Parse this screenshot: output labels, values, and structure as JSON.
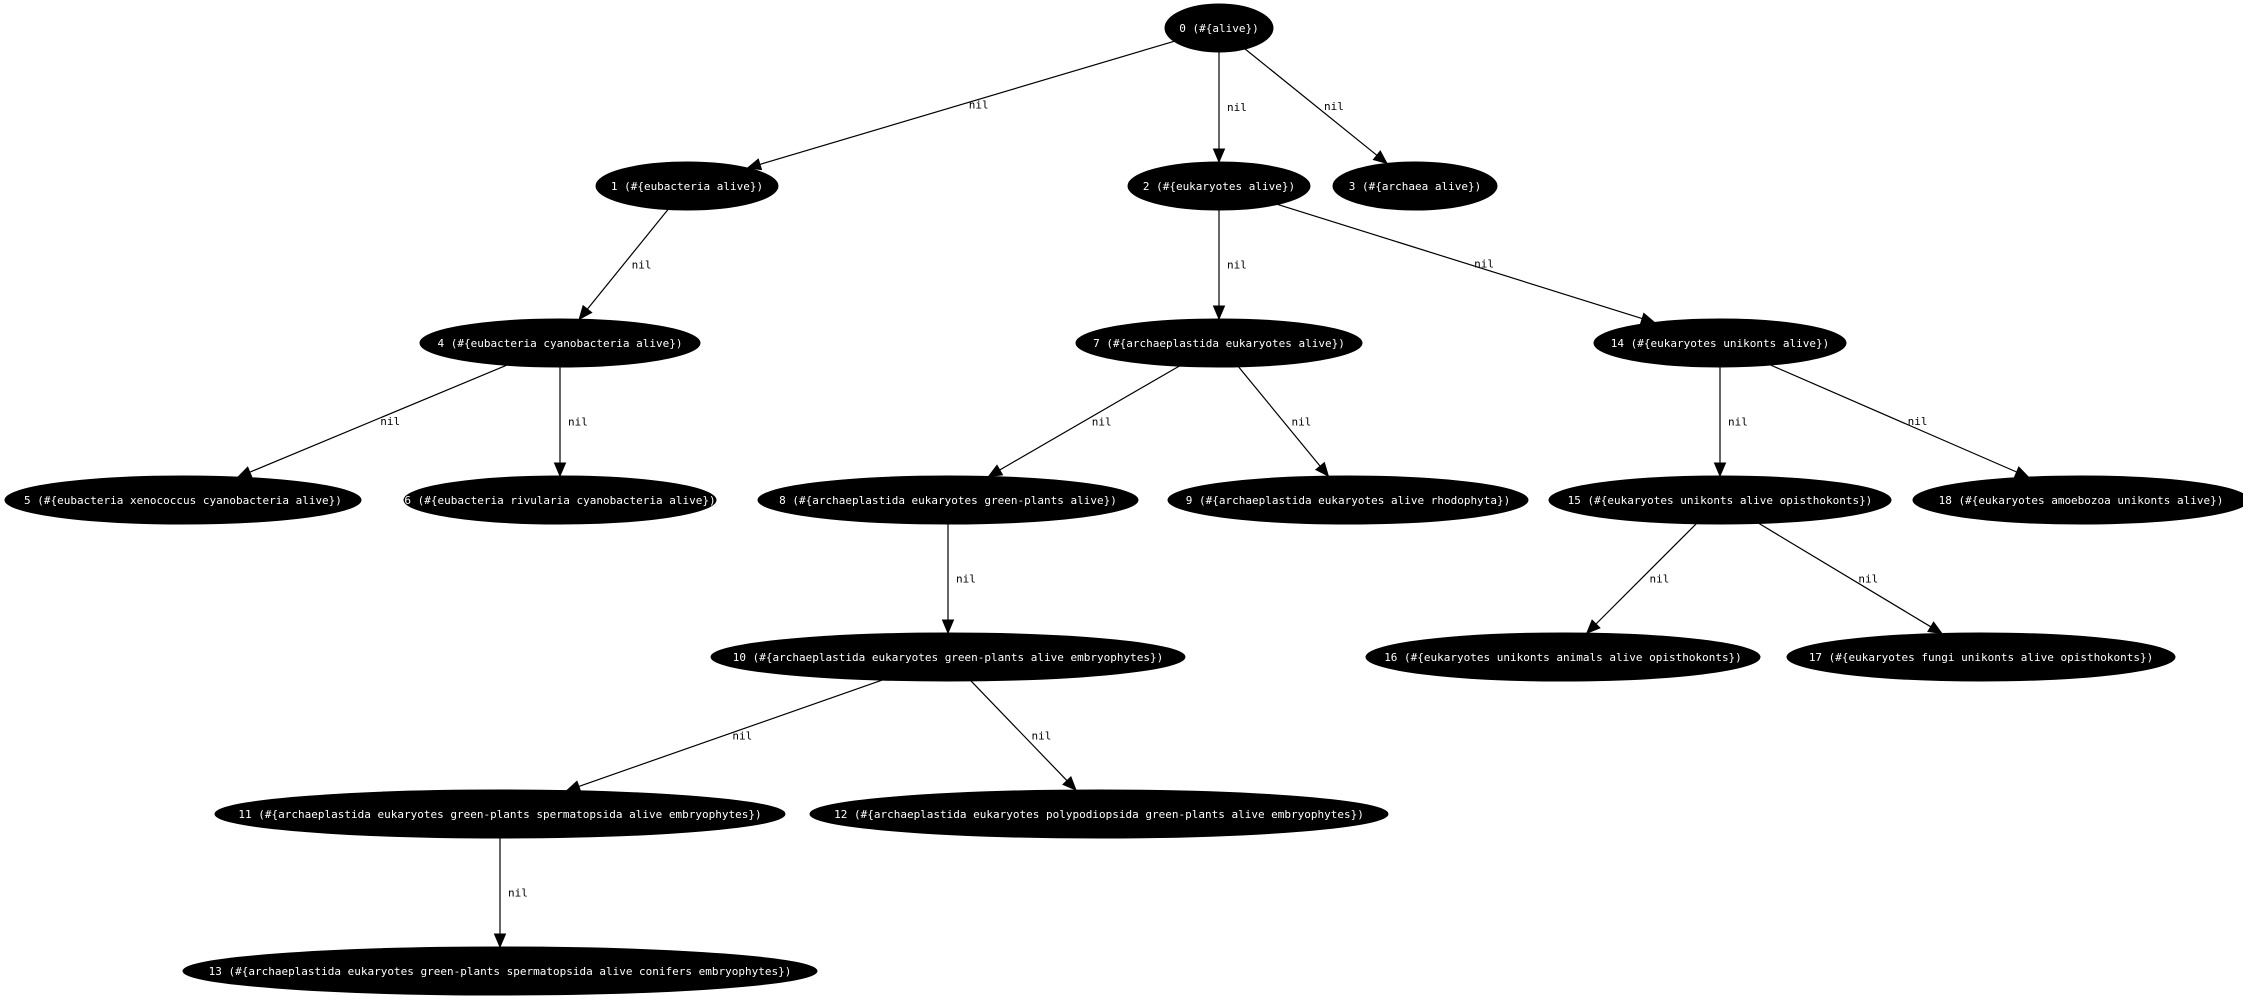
{
  "graph": {
    "nodes": [
      {
        "id": 0,
        "label": "0 (#{alive})"
      },
      {
        "id": 1,
        "label": "1 (#{eubacteria alive})"
      },
      {
        "id": 2,
        "label": "2 (#{eukaryotes alive})"
      },
      {
        "id": 3,
        "label": "3 (#{archaea alive})"
      },
      {
        "id": 4,
        "label": "4 (#{eubacteria cyanobacteria alive})"
      },
      {
        "id": 5,
        "label": "5 (#{eubacteria xenococcus cyanobacteria alive})"
      },
      {
        "id": 6,
        "label": "6 (#{eubacteria rivularia cyanobacteria alive})"
      },
      {
        "id": 7,
        "label": "7 (#{archaeplastida eukaryotes alive})"
      },
      {
        "id": 8,
        "label": "8 (#{archaeplastida eukaryotes green-plants alive})"
      },
      {
        "id": 9,
        "label": "9 (#{archaeplastida eukaryotes alive rhodophyta})"
      },
      {
        "id": 10,
        "label": "10 (#{archaeplastida eukaryotes green-plants alive embryophytes})"
      },
      {
        "id": 11,
        "label": "11 (#{archaeplastida eukaryotes green-plants spermatopsida alive embryophytes})"
      },
      {
        "id": 12,
        "label": "12 (#{archaeplastida eukaryotes polypodiopsida green-plants alive embryophytes})"
      },
      {
        "id": 13,
        "label": "13 (#{archaeplastida eukaryotes green-plants spermatopsida alive conifers embryophytes})"
      },
      {
        "id": 14,
        "label": "14 (#{eukaryotes unikonts alive})"
      },
      {
        "id": 15,
        "label": "15 (#{eukaryotes unikonts alive opisthokonts})"
      },
      {
        "id": 16,
        "label": "16 (#{eukaryotes unikonts animals alive opisthokonts})"
      },
      {
        "id": 17,
        "label": "17 (#{eukaryotes fungi unikonts alive opisthokonts})"
      },
      {
        "id": 18,
        "label": "18 (#{eukaryotes amoebozoa unikonts alive})"
      }
    ],
    "edges": [
      {
        "from": 0,
        "to": 1,
        "label": "nil"
      },
      {
        "from": 0,
        "to": 2,
        "label": "nil"
      },
      {
        "from": 0,
        "to": 3,
        "label": "nil"
      },
      {
        "from": 1,
        "to": 4,
        "label": "nil"
      },
      {
        "from": 4,
        "to": 5,
        "label": "nil"
      },
      {
        "from": 4,
        "to": 6,
        "label": "nil"
      },
      {
        "from": 2,
        "to": 7,
        "label": "nil"
      },
      {
        "from": 2,
        "to": 14,
        "label": "nil"
      },
      {
        "from": 7,
        "to": 8,
        "label": "nil"
      },
      {
        "from": 7,
        "to": 9,
        "label": "nil"
      },
      {
        "from": 8,
        "to": 10,
        "label": "nil"
      },
      {
        "from": 10,
        "to": 11,
        "label": "nil"
      },
      {
        "from": 10,
        "to": 12,
        "label": "nil"
      },
      {
        "from": 11,
        "to": 13,
        "label": "nil"
      },
      {
        "from": 14,
        "to": 15,
        "label": "nil"
      },
      {
        "from": 14,
        "to": 18,
        "label": "nil"
      },
      {
        "from": 15,
        "to": 16,
        "label": "nil"
      },
      {
        "from": 15,
        "to": 17,
        "label": "nil"
      }
    ]
  },
  "colors": {
    "node_fill": "#000000",
    "node_text": "#ffffff",
    "edge": "#000000"
  }
}
